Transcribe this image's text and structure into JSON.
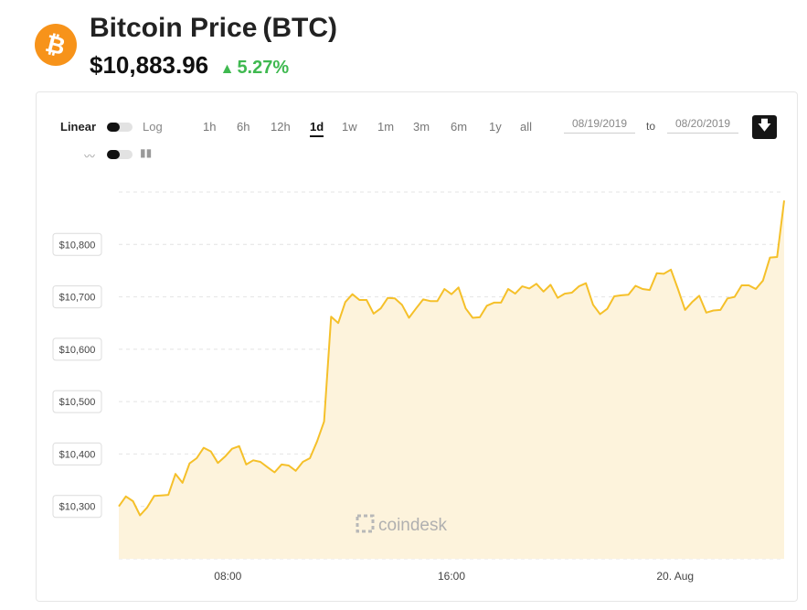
{
  "header": {
    "logo_glyph": "₿",
    "title": "Bitcoin Price",
    "symbol": "(BTC)",
    "price": "$10,883.96",
    "change_arrow": "▲",
    "change": "5.27%",
    "change_color": "#3fb950",
    "brand_color": "#f7931a"
  },
  "toolbar": {
    "linear_label": "Linear",
    "log_label": "Log",
    "ranges": [
      "1h",
      "6h",
      "12h",
      "1d",
      "1w",
      "1m",
      "3m",
      "6m",
      "1y",
      "all"
    ],
    "active_range": "1d",
    "date_from": "08/19/2019",
    "to_label": "to",
    "date_to": "08/20/2019",
    "download_icon": "download-icon",
    "line_icon": "line-chart-icon",
    "candle_icon": "candlestick-icon"
  },
  "watermark": "coindesk",
  "chart_data": {
    "type": "area",
    "line_color": "#f5c02a",
    "fill_color": "#fdf3dc",
    "y_ticks": [
      10300,
      10400,
      10500,
      10600,
      10700,
      10800
    ],
    "y_tick_labels": [
      "$10,300",
      "$10,400",
      "$10,500",
      "$10,600",
      "$10,700",
      "$10,800"
    ],
    "x_tick_labels": [
      "08:00",
      "16:00",
      "20. Aug"
    ],
    "x_tick_hours": [
      8,
      16,
      24
    ],
    "ylim": [
      10200,
      10900
    ],
    "x_hours_start": 4.1,
    "x_hours_end": 27.9,
    "grid": true,
    "values": [
      10300,
      10319,
      10310,
      10283,
      10298,
      10320,
      10321,
      10322,
      10362,
      10345,
      10382,
      10392,
      10412,
      10405,
      10383,
      10395,
      10410,
      10415,
      10380,
      10388,
      10385,
      10375,
      10365,
      10380,
      10378,
      10368,
      10385,
      10392,
      10424,
      10462,
      10662,
      10650,
      10690,
      10705,
      10694,
      10694,
      10668,
      10678,
      10698,
      10697,
      10685,
      10660,
      10678,
      10695,
      10692,
      10692,
      10715,
      10705,
      10718,
      10678,
      10660,
      10661,
      10683,
      10689,
      10689,
      10715,
      10706,
      10720,
      10716,
      10725,
      10710,
      10723,
      10698,
      10706,
      10708,
      10720,
      10726,
      10685,
      10667,
      10677,
      10701,
      10703,
      10704,
      10721,
      10715,
      10713,
      10745,
      10744,
      10752,
      10715,
      10675,
      10690,
      10702,
      10670,
      10674,
      10675,
      10697,
      10700,
      10722,
      10722,
      10715,
      10731,
      10775,
      10776,
      10884
    ]
  }
}
